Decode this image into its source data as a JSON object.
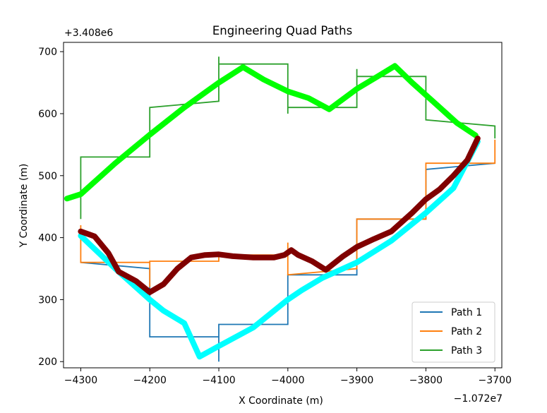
{
  "chart_data": {
    "type": "line",
    "title": "Engineering Quad Paths",
    "xlabel": "X Coordinate (m)",
    "ylabel": "Y Coordinate (m)",
    "x_offset_text": "−1.072e7",
    "y_offset_text": "+3.408e6",
    "xlim": [
      -4325,
      -3690
    ],
    "ylim": [
      190,
      715
    ],
    "x_ticks": [
      -4300,
      -4200,
      -4100,
      -4000,
      -3900,
      -3800,
      -3700
    ],
    "x_tick_labels": [
      "−4300",
      "−4200",
      "−4100",
      "−4000",
      "−3900",
      "−3800",
      "−3700"
    ],
    "y_ticks": [
      200,
      300,
      400,
      500,
      600,
      700
    ],
    "y_tick_labels": [
      "200",
      "300",
      "400",
      "500",
      "600",
      "700"
    ],
    "legend_position": "lower right",
    "grid": false,
    "series": [
      {
        "name": "Path 1",
        "color": "#1f77b4",
        "points": [
          [
            -4300,
            360
          ],
          [
            -4200,
            350
          ],
          [
            -4200,
            240
          ],
          [
            -4100,
            240
          ],
          [
            -4100,
            200
          ],
          [
            -4100,
            260
          ],
          [
            -4000,
            260
          ],
          [
            -4000,
            340
          ],
          [
            -3900,
            340
          ],
          [
            -3900,
            430
          ],
          [
            -3800,
            430
          ],
          [
            -3800,
            510
          ],
          [
            -3700,
            520
          ]
        ]
      },
      {
        "name": "Path 2",
        "color": "#ff7f0e",
        "points": [
          [
            -4300,
            420
          ],
          [
            -4300,
            360
          ],
          [
            -4200,
            360
          ],
          [
            -4200,
            320
          ],
          [
            -4200,
            362
          ],
          [
            -4100,
            362
          ],
          [
            -4100,
            372
          ],
          [
            -4000,
            372
          ],
          [
            -4000,
            392
          ],
          [
            -4000,
            340
          ],
          [
            -3900,
            350
          ],
          [
            -3900,
            430
          ],
          [
            -3800,
            430
          ],
          [
            -3800,
            520
          ],
          [
            -3700,
            520
          ],
          [
            -3700,
            558
          ]
        ]
      },
      {
        "name": "Path 3",
        "color": "#2ca02c",
        "points": [
          [
            -4300,
            430
          ],
          [
            -4300,
            530
          ],
          [
            -4200,
            530
          ],
          [
            -4200,
            610
          ],
          [
            -4100,
            620
          ],
          [
            -4100,
            692
          ],
          [
            -4100,
            680
          ],
          [
            -4000,
            680
          ],
          [
            -4000,
            600
          ],
          [
            -4000,
            610
          ],
          [
            -3900,
            610
          ],
          [
            -3900,
            672
          ],
          [
            -3900,
            660
          ],
          [
            -3800,
            660
          ],
          [
            -3800,
            590
          ],
          [
            -3700,
            580
          ],
          [
            -3700,
            560
          ]
        ]
      }
    ],
    "overlays": [
      {
        "color": "#00ff00",
        "points": [
          [
            -4320,
            463
          ],
          [
            -4300,
            470
          ],
          [
            -4250,
            520
          ],
          [
            -4200,
            566
          ],
          [
            -4150,
            610
          ],
          [
            -4100,
            650
          ],
          [
            -4065,
            675
          ],
          [
            -4035,
            655
          ],
          [
            -4000,
            636
          ],
          [
            -3970,
            625
          ],
          [
            -3940,
            607
          ],
          [
            -3900,
            640
          ],
          [
            -3870,
            660
          ],
          [
            -3845,
            677
          ],
          [
            -3820,
            650
          ],
          [
            -3790,
            620
          ],
          [
            -3755,
            585
          ],
          [
            -3728,
            565
          ]
        ]
      },
      {
        "color": "#00ffff",
        "points": [
          [
            -4300,
            403
          ],
          [
            -4250,
            350
          ],
          [
            -4200,
            300
          ],
          [
            -4180,
            282
          ],
          [
            -4150,
            262
          ],
          [
            -4128,
            208
          ],
          [
            -4100,
            225
          ],
          [
            -4050,
            255
          ],
          [
            -4000,
            300
          ],
          [
            -3980,
            315
          ],
          [
            -3950,
            335
          ],
          [
            -3900,
            360
          ],
          [
            -3850,
            395
          ],
          [
            -3800,
            440
          ],
          [
            -3760,
            480
          ],
          [
            -3725,
            555
          ]
        ]
      },
      {
        "color": "#800000",
        "points": [
          [
            -4300,
            410
          ],
          [
            -4280,
            402
          ],
          [
            -4260,
            375
          ],
          [
            -4245,
            345
          ],
          [
            -4220,
            330
          ],
          [
            -4200,
            312
          ],
          [
            -4180,
            325
          ],
          [
            -4160,
            350
          ],
          [
            -4140,
            368
          ],
          [
            -4120,
            372
          ],
          [
            -4100,
            373
          ],
          [
            -4080,
            370
          ],
          [
            -4050,
            368
          ],
          [
            -4020,
            368
          ],
          [
            -4005,
            372
          ],
          [
            -3995,
            380
          ],
          [
            -3985,
            372
          ],
          [
            -3965,
            362
          ],
          [
            -3945,
            348
          ],
          [
            -3920,
            370
          ],
          [
            -3900,
            385
          ],
          [
            -3875,
            398
          ],
          [
            -3850,
            410
          ],
          [
            -3820,
            440
          ],
          [
            -3800,
            462
          ],
          [
            -3780,
            478
          ],
          [
            -3760,
            500
          ],
          [
            -3740,
            525
          ],
          [
            -3725,
            560
          ]
        ]
      }
    ]
  }
}
